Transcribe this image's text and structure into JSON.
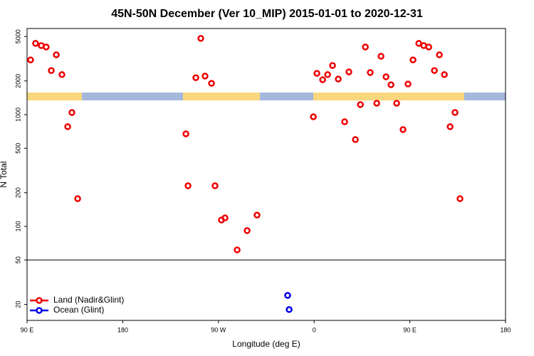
{
  "chart_data": {
    "type": "scatter",
    "title": "45N-50N December (Ver 10_MIP)   2015-01-01 to 2020-12-31",
    "x_label": "Longitude (deg E)",
    "y_label": "N Total",
    "xlim": [
      90,
      540
    ],
    "xticks": [
      {
        "value": 90,
        "label": "90 E"
      },
      {
        "value": 180,
        "label": "180"
      },
      {
        "value": 270,
        "label": "90 W"
      },
      {
        "value": 360,
        "label": "0"
      },
      {
        "value": 450,
        "label": "90 E"
      },
      {
        "value": 540,
        "label": "180"
      }
    ],
    "ylim": [
      14.4,
      5900
    ],
    "log_y": true,
    "yticks": [
      20,
      50,
      100,
      200,
      500,
      1000,
      2000,
      5000
    ],
    "hline": 50,
    "legend": "bottom-left",
    "series": [
      {
        "name": "Land (Nadir&Glint)",
        "color": "#ee0000",
        "x": [
          93.3,
          98,
          103.4,
          108,
          112.8,
          117.5,
          122.8,
          128.2,
          132.2,
          137.6,
          239.4,
          241.4,
          248.7,
          253.4,
          257.4,
          263.5,
          266.8,
          272.8,
          276.2,
          287.6,
          297,
          306.3,
          359.3,
          362.6,
          368,
          372.7,
          377.3,
          382.7,
          388.7,
          392.7,
          398.8,
          403.5,
          408.2,
          412.8,
          418.9,
          422.9,
          427.6,
          432.3,
          437.6,
          443.6,
          448.3,
          453,
          458.4,
          463.1,
          467.8,
          473.1,
          477.8,
          482.5,
          487.9,
          492.5,
          497.2
        ],
        "values": [
          3090,
          4340,
          4150,
          4030,
          2480,
          3430,
          2280,
          780,
          1045,
          177,
          673,
          231,
          2140,
          4810,
          2210,
          1905,
          231,
          114,
          119,
          61.6,
          91.6,
          126,
          956,
          2340,
          2050,
          2280,
          2750,
          2080,
          863,
          2410,
          598,
          1230,
          4030,
          2380,
          1265,
          3330,
          2180,
          1850,
          1265,
          735,
          1880,
          3090,
          4340,
          4150,
          4030,
          2480,
          3430,
          2280,
          780,
          1045,
          177
        ]
      },
      {
        "name": "Ocean (Glint)",
        "color": "#0000ee",
        "x": [
          335.1,
          336.5
        ],
        "values": [
          24.1,
          18.0
        ]
      }
    ]
  }
}
